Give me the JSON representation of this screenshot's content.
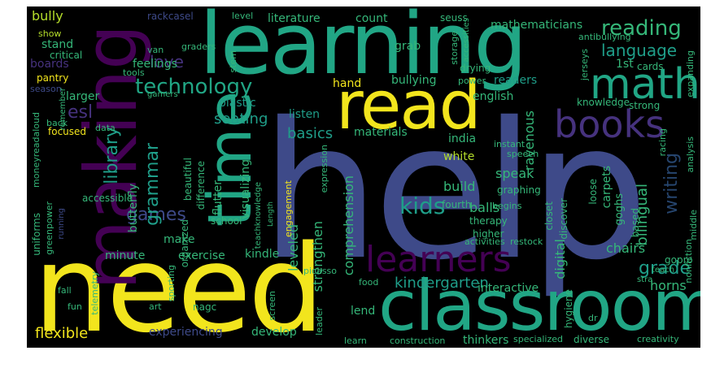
{
  "palette": {
    "yellow": "#f2e51d",
    "lime": "#b5de2b",
    "green": "#35b779",
    "teal": "#21a685",
    "teal2": "#1f9e89",
    "blue": "#31688e",
    "slate": "#3e4a89",
    "indigo": "#46327e",
    "purple": "#440154",
    "navy": "#26456e"
  },
  "words": {
    "help": "help",
    "need": "need",
    "learning": "learning",
    "classroom": "classroom",
    "making": "making",
    "read": "read",
    "time": "time",
    "math": "math",
    "books": "books",
    "learners": "learners",
    "technology": "technology",
    "reading": "reading",
    "language": "language",
    "love": "love",
    "library": "library",
    "games": "games",
    "grammar": "grammar",
    "kids": "kids",
    "writing": "writing",
    "grade": "grade",
    "seating": "seating",
    "basics": "basics",
    "flexible": "flexible",
    "kindergarten": "kindergarten",
    "bully": "bully",
    "stand": "stand",
    "feelings": "feelings",
    "boards": "boards",
    "larger": "larger",
    "esl": "esl",
    "butterfly": "butterfly",
    "flutter": "flutter",
    "visualizing": "visualizing",
    "leveled": "leveled",
    "strengthen": "strengthen",
    "comprehension": "comprehension",
    "digital": "digital",
    "bilingual": "bilingual",
    "chairs": "chairs",
    "horns": "horns",
    "interactive": "interactive",
    "lend": "lend",
    "develop": "develop",
    "experiencing": "experiencing",
    "exercise": "exercise",
    "minute": "minute",
    "make": "make",
    "kindle": "kindle",
    "listen": "listen",
    "materials": "materials",
    "india": "india",
    "white": "white",
    "speak": "speak",
    "build": "build",
    "balls": "balls",
    "ravenous": "ravenous",
    "english": "english",
    "readers": "readers",
    "bullying": "bullying",
    "hand": "hand",
    "grab": "grab",
    "literature": "literature",
    "count": "count",
    "mathematicians": "mathematicians",
    "1st": "1st",
    "cards": "cards",
    "strong": "strong",
    "knowledge": "knowledge",
    "plastic": "plastic",
    "beautiful": "beautiful",
    "difference": "difference",
    "organized": "organized",
    "school": "school",
    "accessible": "accessible",
    "uniforms": "uniforms",
    "greenpower": "greenpower",
    "moneyreadaloud": "moneyreadaloud",
    "focused": "focused",
    "pantry": "pantry",
    "critical": "critical",
    "show": "show",
    "rackcasel": "rackcasel",
    "level": "level",
    "seuss": "seuss",
    "graders": "graders",
    "van": "van",
    "stem": "stem",
    "tools": "tools",
    "gamers": "gamers",
    "drying": "drying",
    "storage": "storage",
    "power": "power",
    "antibullying": "antibullying",
    "jerseys": "jerseys",
    "accessities": "accessities",
    "expanding": "expanding",
    "instant": "instant",
    "speech": "speech",
    "graphing": "graphing",
    "begins": "begins",
    "therapy": "therapy",
    "higher": "higher",
    "closet": "closet",
    "discover": "discover",
    "fourth": "fourth",
    "carpets": "carpets",
    "loose": "loose",
    "goghs": "goghs",
    "based": "based",
    "middle": "middle",
    "racing": "racing",
    "analysis": "analysis",
    "nonfiction": "nonfiction",
    "gopro": "gopro",
    "activities": "activities",
    "restock": "restock",
    "teach": "teach",
    "stra": "stra",
    "food": "food",
    "hygiene": "hygiene",
    "dr": "dr",
    "learn": "learn",
    "construction": "construction",
    "thinkers": "thinkers",
    "specialized": "specialized",
    "diverse": "diverse",
    "creativity": "creativity",
    "art": "art",
    "fun": "fun",
    "fall": "fall",
    "telemetry": "telemetry",
    "sporting": "sporting",
    "nagc": "nagc",
    "screen": "screen",
    "engagement": "engagement",
    "expression": "expression",
    "leader": "leader",
    "picasso": "picasso",
    "data": "data",
    "back": "back",
    "season": "season",
    "remember": "remember",
    "running": "running",
    "teachknowledge": "teachknowledge",
    "length": "Length"
  }
}
